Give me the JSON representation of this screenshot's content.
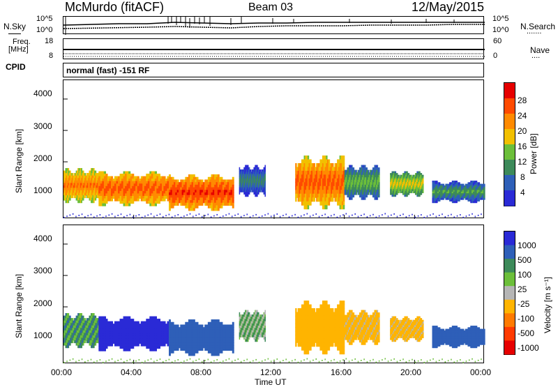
{
  "header": {
    "station": "McMurdo (fitACF)",
    "beam": "Beam 03",
    "date": "12/May/2015"
  },
  "noise_panel": {
    "left_label": "N.Sky",
    "left_ticks": [
      "10^5",
      "10^0"
    ],
    "right_ticks": [
      "10^5",
      "10^0"
    ],
    "right_label": "N.Search",
    "right_label_dots": "......."
  },
  "freq_panel": {
    "left_label_1": "Freq.",
    "left_label_2": "[MHz]",
    "left_ticks": [
      "18",
      "8"
    ],
    "right_ticks": [
      "60",
      "0"
    ],
    "right_label": "Nave",
    "right_label_dots": "...."
  },
  "cpid": {
    "label": "CPID",
    "value": "normal (fast) -151 RF"
  },
  "power_panel": {
    "ylabel": "Slant Range [km]",
    "yticks": [
      "4000",
      "3000",
      "2000",
      "1000"
    ],
    "colorbar_label": "Power [dB]",
    "colorbar_ticks": [
      "28",
      "24",
      "20",
      "16",
      "12",
      "8",
      "4"
    ],
    "colors": [
      "#2a2ad6",
      "#2e5fb8",
      "#3d8a5a",
      "#6cbf3a",
      "#f2c000",
      "#ff8a00",
      "#ff4a00",
      "#e60000"
    ]
  },
  "velocity_panel": {
    "ylabel": "Slant Range [km]",
    "yticks": [
      "4000",
      "3000",
      "2000",
      "1000"
    ],
    "colorbar_label": "Velocity [m s⁻¹]",
    "colorbar_ticks": [
      "1000",
      "500",
      "100",
      "25",
      "-25",
      "-100",
      "-500",
      "-1000"
    ],
    "colors": [
      "#2a2ad6",
      "#2e5fb8",
      "#3d8a5a",
      "#6cbf3a",
      "#b5b5b5",
      "#ffb400",
      "#ff7a00",
      "#ff3a00",
      "#e60000"
    ]
  },
  "xaxis": {
    "ticks": [
      "00:00",
      "04:00",
      "08:00",
      "12:00",
      "16:00",
      "20:00",
      "00:00"
    ],
    "label": "Time UT"
  },
  "chart_data": [
    {
      "type": "heatmap",
      "title": "Power",
      "xlabel": "Time UT",
      "ylabel": "Slant Range [km]",
      "xlim": [
        "00:00",
        "24:00"
      ],
      "ylim": [
        180,
        4600
      ],
      "colorbar": {
        "label": "Power [dB]",
        "range": [
          0,
          32
        ]
      },
      "regions": [
        {
          "t0": 0.0,
          "t1": 2.0,
          "r0": 700,
          "r1": 1800,
          "value": 24
        },
        {
          "t0": 2.0,
          "t1": 6.0,
          "r0": 600,
          "r1": 1700,
          "value": 26
        },
        {
          "t0": 6.0,
          "t1": 9.7,
          "r0": 450,
          "r1": 1600,
          "value": 28
        },
        {
          "t0": 10.0,
          "t1": 11.5,
          "r0": 900,
          "r1": 1900,
          "value": 10
        },
        {
          "t0": 13.2,
          "t1": 16.0,
          "r0": 500,
          "r1": 2200,
          "value": 26
        },
        {
          "t0": 16.0,
          "t1": 18.0,
          "r0": 800,
          "r1": 1900,
          "value": 14
        },
        {
          "t0": 18.6,
          "t1": 20.5,
          "r0": 900,
          "r1": 1700,
          "value": 18
        },
        {
          "t0": 21.0,
          "t1": 24.0,
          "r0": 700,
          "r1": 1400,
          "value": 12
        }
      ]
    },
    {
      "type": "heatmap",
      "title": "Velocity",
      "xlabel": "Time UT",
      "ylabel": "Slant Range [km]",
      "xlim": [
        "00:00",
        "24:00"
      ],
      "ylim": [
        180,
        4600
      ],
      "colorbar": {
        "label": "Velocity [m s-1]",
        "range": [
          -1000,
          1000
        ]
      },
      "regions": [
        {
          "t0": 0.0,
          "t1": 2.0,
          "r0": 700,
          "r1": 1800,
          "value": 50
        },
        {
          "t0": 2.0,
          "t1": 6.0,
          "r0": 600,
          "r1": 1700,
          "value": 600
        },
        {
          "t0": 6.0,
          "t1": 9.7,
          "r0": 450,
          "r1": 1600,
          "value": 400
        },
        {
          "t0": 10.0,
          "t1": 11.5,
          "r0": 900,
          "r1": 1900,
          "value": 0
        },
        {
          "t0": 13.2,
          "t1": 16.0,
          "r0": 500,
          "r1": 2200,
          "value": -200
        },
        {
          "t0": 16.0,
          "t1": 18.0,
          "r0": 800,
          "r1": 1900,
          "value": -150
        },
        {
          "t0": 18.6,
          "t1": 20.5,
          "r0": 900,
          "r1": 1700,
          "value": -150
        },
        {
          "t0": 21.0,
          "t1": 24.0,
          "r0": 700,
          "r1": 1400,
          "value": 200
        }
      ]
    }
  ]
}
